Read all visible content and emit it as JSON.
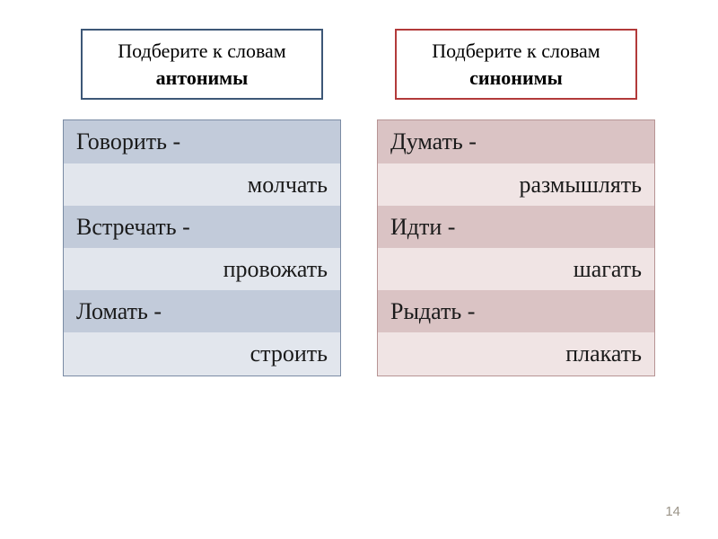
{
  "pageNumber": "14",
  "left": {
    "header": {
      "line1": "Подберите к словам",
      "line2": "антонимы",
      "borderColor": "#3d5777"
    },
    "table": {
      "borderColor": "#7a8ba4",
      "wordBg": "#c2cbda",
      "answerBg": "#e2e6ed",
      "textColor": "#1a1a1a",
      "rows": [
        {
          "word": "Говорить -",
          "answer": "молчать"
        },
        {
          "word": "Встречать -",
          "answer": "провожать"
        },
        {
          "word": "Ломать -",
          "answer": "строить"
        }
      ]
    }
  },
  "right": {
    "header": {
      "line1": "Подберите к словам",
      "line2": "синонимы",
      "borderColor": "#b23a3a"
    },
    "table": {
      "borderColor": "#b79494",
      "wordBg": "#dac3c4",
      "answerBg": "#f0e4e4",
      "textColor": "#1a1a1a",
      "rows": [
        {
          "word": "Думать -",
          "answer": "размышлять"
        },
        {
          "word": "Идти -",
          "answer": "шагать"
        },
        {
          "word": "Рыдать -",
          "answer": "плакать"
        }
      ]
    }
  }
}
